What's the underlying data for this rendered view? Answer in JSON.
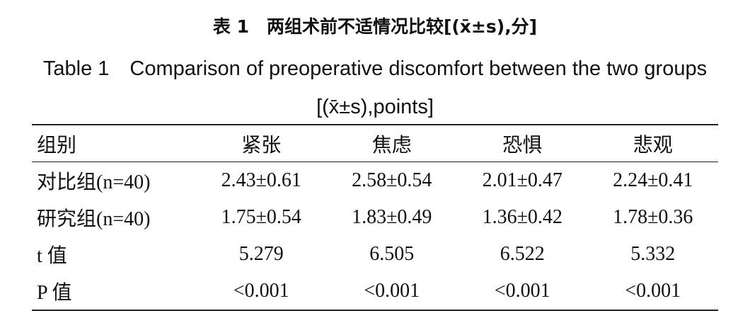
{
  "title_cn": "表 1　两组术前不适情况比较[(x̄±s),分]",
  "title_en": "Table 1　Comparison of preoperative discomfort between the two groups [(x̄±s),points]",
  "table": {
    "header": [
      "组别",
      "紧张",
      "焦虑",
      "恐惧",
      "悲观"
    ],
    "rows": [
      [
        "对比组(n=40)",
        "2.43±0.61",
        "2.58±0.54",
        "2.01±0.47",
        "2.24±0.41"
      ],
      [
        "研究组(n=40)",
        "1.75±0.54",
        "1.83±0.49",
        "1.36±0.42",
        "1.78±0.36"
      ],
      [
        "t 值",
        "5.279",
        "6.505",
        "6.522",
        "5.332"
      ],
      [
        "P 值",
        "<0.001",
        "<0.001",
        "<0.001",
        "<0.001"
      ]
    ]
  }
}
